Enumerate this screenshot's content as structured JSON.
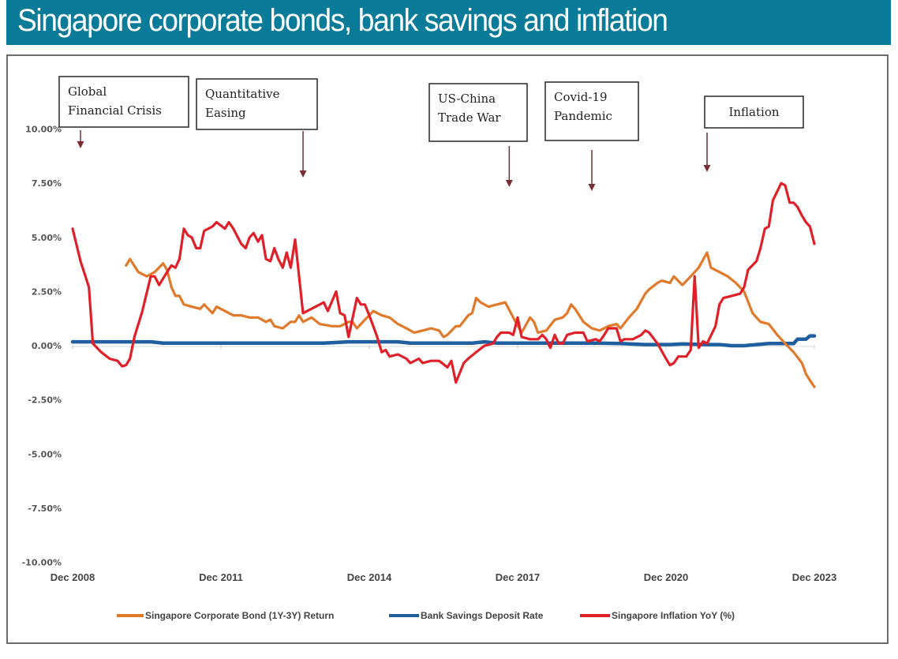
{
  "header": {
    "title": "Singapore corporate bonds, bank savings and inflation",
    "background_color": "#0a7b98"
  },
  "chart_data": {
    "type": "line",
    "title": "Singapore corporate bonds, bank savings and inflation",
    "xlabel": "",
    "ylabel": "",
    "x_unit": "decimal year",
    "xlim": [
      2008.92,
      2023.92
    ],
    "ylim": [
      -10,
      10
    ],
    "y_ticks": [
      10,
      7.5,
      5,
      2.5,
      0,
      -2.5,
      -5,
      -7.5,
      -10
    ],
    "y_tick_labels": [
      "10.00%",
      "7.50%",
      "5.00%",
      "2.50%",
      "0.00%",
      "-2.50%",
      "-5.00%",
      "-7.50%",
      "-10.00%"
    ],
    "x_ticks": [
      2008.92,
      2011.92,
      2014.92,
      2017.92,
      2020.92,
      2023.92
    ],
    "x_tick_labels": [
      "Dec 2008",
      "Dec 2011",
      "Dec 2014",
      "Dec 2017",
      "Dec 2020",
      "Dec 2023"
    ],
    "grid": false,
    "legend_position": "bottom",
    "series": [
      {
        "name": "Singapore Corporate Bond (1Y-3Y) Return",
        "color": "#e07a2a",
        "points": [
          [
            2010.0,
            3.7
          ],
          [
            2010.08,
            4.0
          ],
          [
            2010.25,
            3.4
          ],
          [
            2010.42,
            3.2
          ],
          [
            2010.58,
            3.4
          ],
          [
            2010.75,
            3.8
          ],
          [
            2010.83,
            3.5
          ],
          [
            2010.92,
            2.7
          ],
          [
            2011.0,
            2.3
          ],
          [
            2011.08,
            2.3
          ],
          [
            2011.17,
            1.9
          ],
          [
            2011.33,
            1.8
          ],
          [
            2011.5,
            1.7
          ],
          [
            2011.58,
            1.9
          ],
          [
            2011.75,
            1.5
          ],
          [
            2011.83,
            1.8
          ],
          [
            2012.0,
            1.6
          ],
          [
            2012.17,
            1.4
          ],
          [
            2012.33,
            1.4
          ],
          [
            2012.5,
            1.3
          ],
          [
            2012.67,
            1.3
          ],
          [
            2012.83,
            1.1
          ],
          [
            2012.92,
            1.2
          ],
          [
            2013.0,
            0.9
          ],
          [
            2013.17,
            0.8
          ],
          [
            2013.33,
            1.1
          ],
          [
            2013.42,
            1.1
          ],
          [
            2013.5,
            1.4
          ],
          [
            2013.58,
            1.1
          ],
          [
            2013.75,
            1.3
          ],
          [
            2013.92,
            1.0
          ],
          [
            2014.17,
            0.9
          ],
          [
            2014.33,
            0.9
          ],
          [
            2014.5,
            1.1
          ],
          [
            2014.58,
            1.1
          ],
          [
            2014.67,
            0.8
          ],
          [
            2014.83,
            1.2
          ],
          [
            2014.92,
            1.4
          ],
          [
            2015.0,
            1.6
          ],
          [
            2015.17,
            1.4
          ],
          [
            2015.33,
            1.3
          ],
          [
            2015.5,
            1.0
          ],
          [
            2015.67,
            0.8
          ],
          [
            2015.83,
            0.6
          ],
          [
            2016.0,
            0.7
          ],
          [
            2016.17,
            0.8
          ],
          [
            2016.33,
            0.7
          ],
          [
            2016.42,
            0.4
          ],
          [
            2016.5,
            0.5
          ],
          [
            2016.67,
            0.9
          ],
          [
            2016.75,
            0.9
          ],
          [
            2016.92,
            1.4
          ],
          [
            2017.0,
            1.5
          ],
          [
            2017.08,
            2.2
          ],
          [
            2017.17,
            2.0
          ],
          [
            2017.33,
            1.8
          ],
          [
            2017.5,
            1.9
          ],
          [
            2017.67,
            2.0
          ],
          [
            2017.83,
            1.3
          ],
          [
            2018.0,
            0.6
          ],
          [
            2018.17,
            1.3
          ],
          [
            2018.25,
            1.1
          ],
          [
            2018.33,
            0.6
          ],
          [
            2018.5,
            0.7
          ],
          [
            2018.67,
            1.2
          ],
          [
            2018.83,
            1.3
          ],
          [
            2018.92,
            1.5
          ],
          [
            2019.0,
            1.9
          ],
          [
            2019.08,
            1.7
          ],
          [
            2019.25,
            1.1
          ],
          [
            2019.42,
            0.8
          ],
          [
            2019.58,
            0.7
          ],
          [
            2019.75,
            0.9
          ],
          [
            2019.92,
            1.0
          ],
          [
            2020.0,
            0.8
          ],
          [
            2020.17,
            1.3
          ],
          [
            2020.33,
            1.7
          ],
          [
            2020.5,
            2.4
          ],
          [
            2020.58,
            2.6
          ],
          [
            2020.75,
            2.9
          ],
          [
            2020.83,
            3.0
          ],
          [
            2021.0,
            2.9
          ],
          [
            2021.08,
            3.2
          ],
          [
            2021.25,
            2.8
          ],
          [
            2021.42,
            3.2
          ],
          [
            2021.58,
            3.6
          ],
          [
            2021.75,
            4.3
          ],
          [
            2021.83,
            3.6
          ],
          [
            2022.0,
            3.4
          ],
          [
            2022.17,
            3.2
          ],
          [
            2022.33,
            2.9
          ],
          [
            2022.5,
            2.5
          ],
          [
            2022.67,
            1.5
          ],
          [
            2022.83,
            1.1
          ],
          [
            2023.0,
            1.0
          ],
          [
            2023.17,
            0.5
          ],
          [
            2023.33,
            0.1
          ],
          [
            2023.5,
            -0.3
          ],
          [
            2023.67,
            -0.8
          ],
          [
            2023.75,
            -1.3
          ],
          [
            2023.83,
            -1.6
          ],
          [
            2023.92,
            -1.9
          ]
        ]
      },
      {
        "name": "Bank Savings Deposit Rate",
        "color": "#1f5fa0",
        "points": [
          [
            2008.92,
            0.18
          ],
          [
            2010.5,
            0.18
          ],
          [
            2010.75,
            0.12
          ],
          [
            2014.0,
            0.12
          ],
          [
            2014.5,
            0.18
          ],
          [
            2015.5,
            0.18
          ],
          [
            2015.75,
            0.12
          ],
          [
            2017.0,
            0.12
          ],
          [
            2017.25,
            0.18
          ],
          [
            2017.5,
            0.12
          ],
          [
            2019.5,
            0.12
          ],
          [
            2020.0,
            0.1
          ],
          [
            2020.5,
            0.05
          ],
          [
            2021.0,
            0.05
          ],
          [
            2021.25,
            0.08
          ],
          [
            2021.75,
            0.05
          ],
          [
            2022.0,
            0.05
          ],
          [
            2022.25,
            0.0
          ],
          [
            2022.5,
            0.0
          ],
          [
            2023.0,
            0.1
          ],
          [
            2023.5,
            0.1
          ],
          [
            2023.58,
            0.3
          ],
          [
            2023.75,
            0.3
          ],
          [
            2023.83,
            0.45
          ],
          [
            2023.92,
            0.45
          ]
        ]
      },
      {
        "name": "Singapore Inflation YoY (%)",
        "color": "#e02028",
        "points": [
          [
            2008.92,
            5.4
          ],
          [
            2009.08,
            3.9
          ],
          [
            2009.25,
            2.7
          ],
          [
            2009.33,
            0.1
          ],
          [
            2009.5,
            -0.3
          ],
          [
            2009.67,
            -0.6
          ],
          [
            2009.83,
            -0.7
          ],
          [
            2009.92,
            -0.95
          ],
          [
            2010.0,
            -0.9
          ],
          [
            2010.08,
            -0.6
          ],
          [
            2010.17,
            0.4
          ],
          [
            2010.33,
            1.6
          ],
          [
            2010.5,
            3.2
          ],
          [
            2010.58,
            3.2
          ],
          [
            2010.67,
            2.8
          ],
          [
            2010.75,
            3.1
          ],
          [
            2010.83,
            3.4
          ],
          [
            2010.92,
            3.7
          ],
          [
            2011.0,
            3.6
          ],
          [
            2011.08,
            4.0
          ],
          [
            2011.17,
            5.4
          ],
          [
            2011.25,
            5.1
          ],
          [
            2011.33,
            5.0
          ],
          [
            2011.42,
            4.5
          ],
          [
            2011.5,
            4.5
          ],
          [
            2011.58,
            5.3
          ],
          [
            2011.75,
            5.5
          ],
          [
            2011.83,
            5.7
          ],
          [
            2012.0,
            5.4
          ],
          [
            2012.08,
            5.7
          ],
          [
            2012.17,
            5.4
          ],
          [
            2012.33,
            4.7
          ],
          [
            2012.42,
            4.5
          ],
          [
            2012.5,
            5.0
          ],
          [
            2012.58,
            5.2
          ],
          [
            2012.67,
            4.8
          ],
          [
            2012.75,
            5.1
          ],
          [
            2012.83,
            4.0
          ],
          [
            2012.92,
            3.9
          ],
          [
            2013.0,
            4.5
          ],
          [
            2013.08,
            4.0
          ],
          [
            2013.17,
            3.6
          ],
          [
            2013.25,
            4.3
          ],
          [
            2013.33,
            3.6
          ],
          [
            2013.42,
            4.9
          ],
          [
            2013.58,
            1.5
          ],
          [
            2013.75,
            1.7
          ],
          [
            2013.92,
            1.9
          ],
          [
            2014.0,
            2.0
          ],
          [
            2014.08,
            1.6
          ],
          [
            2014.25,
            2.5
          ],
          [
            2014.33,
            1.5
          ],
          [
            2014.42,
            1.4
          ],
          [
            2014.5,
            0.4
          ],
          [
            2014.67,
            2.2
          ],
          [
            2014.75,
            1.9
          ],
          [
            2014.83,
            1.9
          ],
          [
            2014.92,
            1.4
          ],
          [
            2015.0,
            0.9
          ],
          [
            2015.08,
            0.4
          ],
          [
            2015.17,
            -0.3
          ],
          [
            2015.25,
            -0.2
          ],
          [
            2015.33,
            -0.5
          ],
          [
            2015.5,
            -0.4
          ],
          [
            2015.67,
            -0.6
          ],
          [
            2015.75,
            -0.8
          ],
          [
            2015.92,
            -0.6
          ],
          [
            2016.0,
            -0.8
          ],
          [
            2016.17,
            -0.7
          ],
          [
            2016.33,
            -0.7
          ],
          [
            2016.5,
            -1.0
          ],
          [
            2016.58,
            -0.7
          ],
          [
            2016.67,
            -1.7
          ],
          [
            2016.83,
            -0.8
          ],
          [
            2016.92,
            -0.6
          ],
          [
            2017.08,
            -0.3
          ],
          [
            2017.25,
            0.0
          ],
          [
            2017.42,
            0.1
          ],
          [
            2017.5,
            0.4
          ],
          [
            2017.58,
            0.6
          ],
          [
            2017.75,
            0.6
          ],
          [
            2017.83,
            0.5
          ],
          [
            2017.92,
            1.3
          ],
          [
            2018.0,
            0.4
          ],
          [
            2018.17,
            0.3
          ],
          [
            2018.33,
            0.3
          ],
          [
            2018.42,
            0.5
          ],
          [
            2018.5,
            0.3
          ],
          [
            2018.58,
            -0.1
          ],
          [
            2018.67,
            0.5
          ],
          [
            2018.75,
            0.1
          ],
          [
            2018.83,
            0.1
          ],
          [
            2018.92,
            0.5
          ],
          [
            2019.08,
            0.6
          ],
          [
            2019.25,
            0.6
          ],
          [
            2019.33,
            0.2
          ],
          [
            2019.5,
            0.3
          ],
          [
            2019.58,
            0.2
          ],
          [
            2019.67,
            0.5
          ],
          [
            2019.75,
            0.8
          ],
          [
            2019.92,
            0.8
          ],
          [
            2020.0,
            0.2
          ],
          [
            2020.08,
            0.3
          ],
          [
            2020.25,
            0.3
          ],
          [
            2020.42,
            0.5
          ],
          [
            2020.5,
            0.7
          ],
          [
            2020.58,
            0.6
          ],
          [
            2020.75,
            0.1
          ],
          [
            2020.92,
            -0.6
          ],
          [
            2021.0,
            -0.9
          ],
          [
            2021.08,
            -0.8
          ],
          [
            2021.17,
            -0.5
          ],
          [
            2021.33,
            -0.5
          ],
          [
            2021.42,
            -0.2
          ],
          [
            2021.5,
            3.2
          ],
          [
            2021.58,
            -0.1
          ],
          [
            2021.67,
            0.2
          ],
          [
            2021.75,
            0.1
          ],
          [
            2021.92,
            0.9
          ],
          [
            2022.0,
            1.9
          ],
          [
            2022.08,
            2.2
          ],
          [
            2022.25,
            2.3
          ],
          [
            2022.42,
            2.4
          ],
          [
            2022.5,
            2.7
          ],
          [
            2022.58,
            3.5
          ],
          [
            2022.75,
            3.9
          ],
          [
            2022.83,
            4.5
          ],
          [
            2022.92,
            5.4
          ],
          [
            2023.0,
            5.5
          ],
          [
            2023.08,
            6.7
          ],
          [
            2023.25,
            7.5
          ],
          [
            2023.33,
            7.4
          ],
          [
            2023.42,
            6.6
          ],
          [
            2023.5,
            6.6
          ],
          [
            2023.58,
            6.4
          ],
          [
            2023.67,
            6.0
          ],
          [
            2023.75,
            5.7
          ],
          [
            2023.83,
            5.5
          ],
          [
            2023.92,
            4.7
          ]
        ]
      }
    ],
    "annotations": [
      {
        "lines": [
          "Global",
          "Financial Crisis"
        ],
        "arrow_x": 2009.08
      },
      {
        "lines": [
          "Quantitative",
          "Easing"
        ],
        "arrow_x": 2013.58
      },
      {
        "lines": [
          "US-China",
          "Trade War"
        ],
        "arrow_x": 2017.75
      },
      {
        "lines": [
          "Covid-19",
          "Pandemic"
        ],
        "arrow_x": 2019.42
      },
      {
        "lines": [
          "Inflation"
        ],
        "arrow_x": 2021.75
      }
    ]
  }
}
